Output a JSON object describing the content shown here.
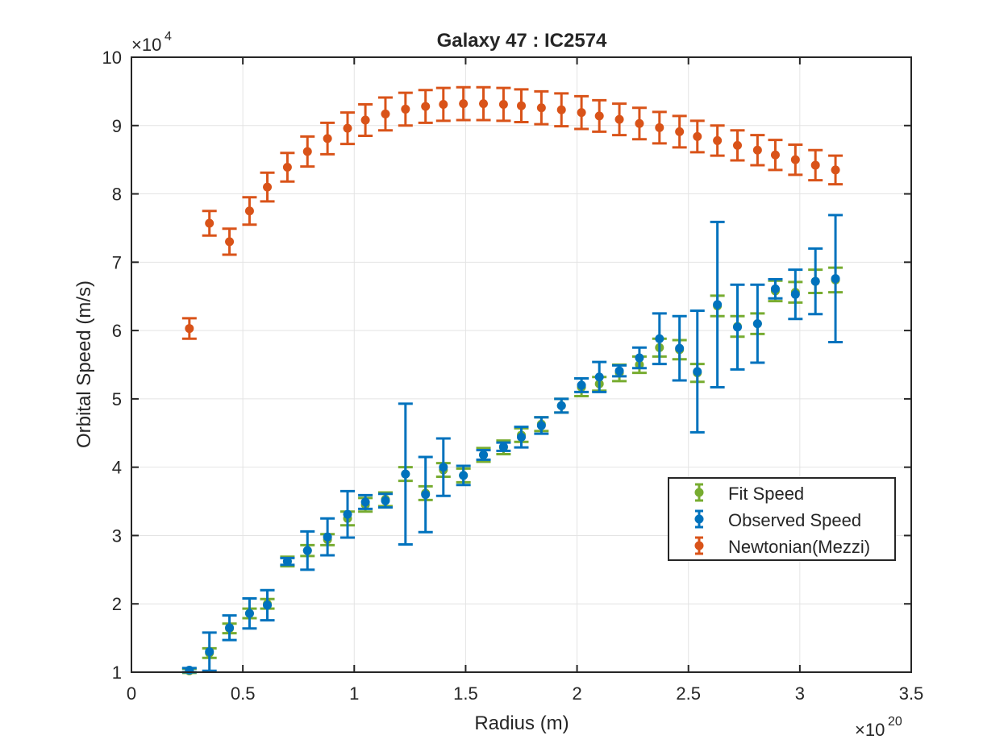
{
  "chart_data": {
    "type": "scatter",
    "title": "Galaxy 47 : IC2574",
    "xlabel": "Radius (m)",
    "ylabel": "Orbital Speed (m/s)",
    "x_multiplier": "×10",
    "x_exponent": "20",
    "y_multiplier": "×10",
    "y_exponent": "4",
    "xlim": [
      0,
      3.5
    ],
    "ylim": [
      1,
      10
    ],
    "xticks": [
      0,
      0.5,
      1,
      1.5,
      2,
      2.5,
      3,
      3.5
    ],
    "xtick_labels": [
      "0",
      "0.5",
      "1",
      "1.5",
      "2",
      "2.5",
      "3",
      "3.5"
    ],
    "yticks": [
      1,
      2,
      3,
      4,
      5,
      6,
      7,
      8,
      9,
      10
    ],
    "ytick_labels": [
      "1",
      "2",
      "3",
      "4",
      "5",
      "6",
      "7",
      "8",
      "9",
      "10"
    ],
    "grid": true,
    "legend_position": "lower-right",
    "x": [
      0.26,
      0.35,
      0.44,
      0.53,
      0.61,
      0.7,
      0.79,
      0.88,
      0.97,
      1.05,
      1.14,
      1.23,
      1.32,
      1.4,
      1.49,
      1.58,
      1.67,
      1.75,
      1.84,
      1.93,
      2.02,
      2.1,
      2.19,
      2.28,
      2.37,
      2.46,
      2.54,
      2.63,
      2.72,
      2.81,
      2.89,
      2.98,
      3.07,
      3.16
    ],
    "series": [
      {
        "name": "Fit Speed",
        "color": "#77AC30",
        "values": [
          1.02,
          1.28,
          1.64,
          1.86,
          2.0,
          2.62,
          2.78,
          2.94,
          3.25,
          3.45,
          3.53,
          3.9,
          3.62,
          3.96,
          3.88,
          4.18,
          4.29,
          4.47,
          4.63,
          4.9,
          5.17,
          5.22,
          5.38,
          5.5,
          5.75,
          5.72,
          5.38,
          6.36,
          6.06,
          6.1,
          6.58,
          6.56,
          6.72,
          6.74
        ],
        "errors": [
          0.03,
          0.07,
          0.07,
          0.07,
          0.07,
          0.07,
          0.08,
          0.08,
          0.1,
          0.1,
          0.1,
          0.1,
          0.1,
          0.1,
          0.1,
          0.1,
          0.1,
          0.1,
          0.1,
          0.1,
          0.13,
          0.1,
          0.12,
          0.12,
          0.13,
          0.14,
          0.13,
          0.15,
          0.15,
          0.15,
          0.15,
          0.15,
          0.17,
          0.18
        ]
      },
      {
        "name": "Observed Speed",
        "color": "#0072BD",
        "values": [
          1.03,
          1.3,
          1.65,
          1.86,
          1.98,
          2.62,
          2.78,
          2.98,
          3.31,
          3.49,
          3.51,
          3.9,
          3.6,
          4.0,
          3.88,
          4.18,
          4.3,
          4.44,
          4.61,
          4.9,
          5.2,
          5.32,
          5.41,
          5.6,
          5.88,
          5.74,
          5.4,
          6.38,
          6.05,
          6.1,
          6.61,
          6.53,
          6.72,
          6.76
        ],
        "errors": [
          0.03,
          0.28,
          0.18,
          0.22,
          0.22,
          0.05,
          0.28,
          0.27,
          0.34,
          0.1,
          0.1,
          1.03,
          0.55,
          0.42,
          0.14,
          0.07,
          0.06,
          0.15,
          0.12,
          0.1,
          0.1,
          0.22,
          0.08,
          0.15,
          0.37,
          0.47,
          0.89,
          1.21,
          0.62,
          0.57,
          0.14,
          0.36,
          0.48,
          0.93
        ]
      },
      {
        "name": "Newtonian(Mezzi)",
        "color": "#D95319",
        "values": [
          6.03,
          7.57,
          7.3,
          7.75,
          8.1,
          8.39,
          8.62,
          8.81,
          8.96,
          9.08,
          9.17,
          9.24,
          9.28,
          9.31,
          9.32,
          9.32,
          9.31,
          9.29,
          9.26,
          9.23,
          9.19,
          9.14,
          9.09,
          9.03,
          8.97,
          8.91,
          8.84,
          8.78,
          8.71,
          8.64,
          8.57,
          8.5,
          8.42,
          8.35
        ],
        "errors": [
          0.15,
          0.18,
          0.19,
          0.2,
          0.21,
          0.21,
          0.22,
          0.23,
          0.23,
          0.23,
          0.24,
          0.24,
          0.24,
          0.24,
          0.24,
          0.24,
          0.24,
          0.24,
          0.24,
          0.24,
          0.24,
          0.23,
          0.23,
          0.23,
          0.23,
          0.23,
          0.23,
          0.22,
          0.22,
          0.22,
          0.22,
          0.22,
          0.22,
          0.21
        ]
      }
    ]
  }
}
